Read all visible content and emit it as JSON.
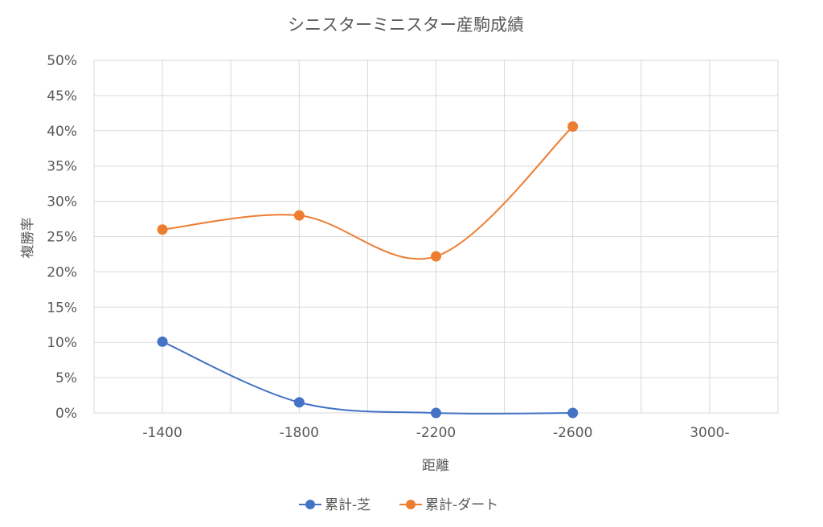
{
  "chart_data": {
    "type": "line",
    "title": "シニスターミニスター産駒成績",
    "xlabel": "距離",
    "ylabel": "複勝率",
    "categories": [
      "-1400",
      "-1800",
      "-2200",
      "-2600",
      "3000-"
    ],
    "x_ticks": [
      "-1400",
      "-1800",
      "-2200",
      "-2600",
      "3000-"
    ],
    "y_ticks": [
      "0%",
      "5%",
      "10%",
      "15%",
      "20%",
      "25%",
      "30%",
      "35%",
      "40%",
      "45%",
      "50%"
    ],
    "ylim": [
      0,
      50
    ],
    "y_unit": "%",
    "smooth": true,
    "grid": true,
    "legend_position": "bottom",
    "series": [
      {
        "name": "累計-芝",
        "color": "#4472c4",
        "values": [
          10.1,
          1.5,
          0.0,
          0.0,
          null
        ]
      },
      {
        "name": "累計-ダート",
        "color": "#ed7d31",
        "values": [
          26.0,
          28.0,
          22.2,
          40.6,
          null
        ]
      }
    ]
  }
}
